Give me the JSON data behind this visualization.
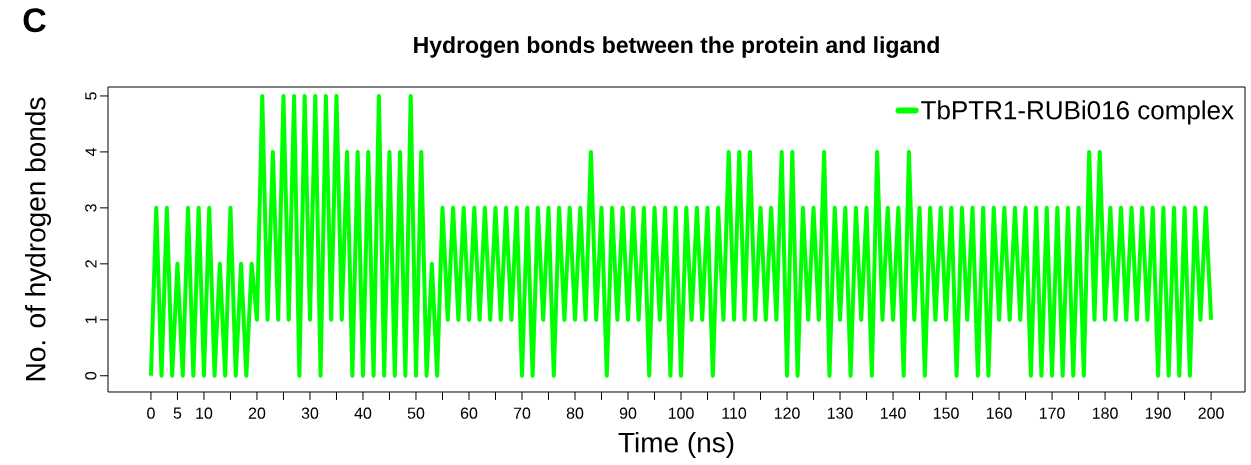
{
  "chart_data": {
    "type": "line",
    "title": "Hydrogen bonds between the protein and ligand",
    "xlabel": "Time (ns)",
    "ylabel": "No. of hydrogen bonds",
    "annotations": [
      "C"
    ],
    "xlim": [
      -8.1,
      206.4
    ],
    "ylim": [
      -0.29,
      5.16
    ],
    "xticks": [
      0,
      5,
      10,
      {
        "value": 15,
        "label": null
      },
      20,
      {
        "value": 25,
        "label": null
      },
      30,
      {
        "value": 35,
        "label": null
      },
      40,
      {
        "value": 45,
        "label": null
      },
      50,
      {
        "value": 55,
        "label": null
      },
      60,
      {
        "value": 65,
        "label": null
      },
      70,
      {
        "value": 75,
        "label": null
      },
      80,
      {
        "value": 85,
        "label": null
      },
      90,
      {
        "value": 95,
        "label": null
      },
      100,
      {
        "value": 105,
        "label": null
      },
      110,
      {
        "value": 115,
        "label": null
      },
      120,
      {
        "value": 125,
        "label": null
      },
      130,
      {
        "value": 135,
        "label": null
      },
      140,
      {
        "value": 145,
        "label": null
      },
      150,
      {
        "value": 155,
        "label": null
      },
      160,
      {
        "value": 165,
        "label": null
      },
      170,
      {
        "value": 175,
        "label": null
      },
      180,
      {
        "value": 185,
        "label": null
      },
      190,
      {
        "value": 195,
        "label": null
      },
      200
    ],
    "yticks": [
      0,
      1,
      2,
      3,
      4,
      5
    ],
    "legend": "top right",
    "series": [
      {
        "name": "TbPTR1-RUBi016 complex",
        "color": "#00ff00",
        "x": [
          0,
          1,
          2,
          3,
          4,
          5,
          6,
          7,
          8,
          9,
          10,
          11,
          12,
          13,
          14,
          15,
          16,
          17,
          18,
          19,
          20,
          21,
          22,
          23,
          24,
          25,
          26,
          27,
          28,
          29,
          30,
          31,
          32,
          33,
          34,
          35,
          36,
          37,
          38,
          39,
          40,
          41,
          42,
          43,
          44,
          45,
          46,
          47,
          48,
          49,
          50,
          51,
          52,
          53,
          54,
          55,
          56,
          57,
          58,
          59,
          60,
          61,
          62,
          63,
          64,
          65,
          66,
          67,
          68,
          69,
          70,
          71,
          72,
          73,
          74,
          75,
          76,
          77,
          78,
          79,
          80,
          81,
          82,
          83,
          84,
          85,
          86,
          87,
          88,
          89,
          90,
          91,
          92,
          93,
          94,
          95,
          96,
          97,
          98,
          99,
          100,
          101,
          102,
          103,
          104,
          105,
          106,
          107,
          108,
          109,
          110,
          111,
          112,
          113,
          114,
          115,
          116,
          117,
          118,
          119,
          120,
          121,
          122,
          123,
          124,
          125,
          126,
          127,
          128,
          129,
          130,
          131,
          132,
          133,
          134,
          135,
          136,
          137,
          138,
          139,
          140,
          141,
          142,
          143,
          144,
          145,
          146,
          147,
          148,
          149,
          150,
          151,
          152,
          153,
          154,
          155,
          156,
          157,
          158,
          159,
          160,
          161,
          162,
          163,
          164,
          165,
          166,
          167,
          168,
          169,
          170,
          171,
          172,
          173,
          174,
          175,
          176,
          177,
          178,
          179,
          180,
          181,
          182,
          183,
          184,
          185,
          186,
          187,
          188,
          189,
          190,
          191,
          192,
          193,
          194,
          195,
          196,
          197,
          198,
          199,
          200
        ],
        "values": [
          0,
          3,
          0,
          3,
          0,
          2,
          0,
          3,
          0,
          3,
          0,
          3,
          0,
          2,
          0,
          3,
          0,
          2,
          0,
          2,
          1,
          5,
          1,
          4,
          1,
          5,
          1,
          5,
          0,
          5,
          1,
          5,
          0,
          5,
          1,
          5,
          1,
          4,
          0,
          4,
          0,
          4,
          0,
          5,
          0,
          4,
          0,
          4,
          0,
          5,
          0,
          4,
          0,
          2,
          0,
          3,
          1,
          3,
          1,
          3,
          1,
          3,
          1,
          3,
          1,
          3,
          1,
          3,
          1,
          3,
          0,
          3,
          0,
          3,
          1,
          3,
          0,
          3,
          1,
          3,
          1,
          3,
          1,
          4,
          1,
          3,
          0,
          3,
          1,
          3,
          1,
          3,
          1,
          3,
          0,
          3,
          1,
          3,
          0,
          3,
          0,
          3,
          1,
          3,
          1,
          3,
          0,
          3,
          1,
          4,
          1,
          4,
          1,
          4,
          1,
          3,
          1,
          3,
          1,
          4,
          0,
          4,
          0,
          3,
          1,
          3,
          1,
          4,
          0,
          3,
          1,
          3,
          0,
          3,
          1,
          3,
          0,
          4,
          1,
          3,
          1,
          3,
          0,
          4,
          1,
          3,
          0,
          3,
          1,
          3,
          1,
          3,
          0,
          3,
          1,
          3,
          0,
          3,
          0,
          3,
          1,
          3,
          1,
          3,
          1,
          3,
          0,
          3,
          0,
          3,
          0,
          3,
          0,
          3,
          0,
          3,
          0,
          4,
          1,
          4,
          1,
          3,
          1,
          3,
          1,
          3,
          1,
          3,
          1,
          3,
          0,
          3,
          0,
          3,
          0,
          3,
          0,
          3,
          1,
          3,
          1
        ]
      }
    ]
  }
}
